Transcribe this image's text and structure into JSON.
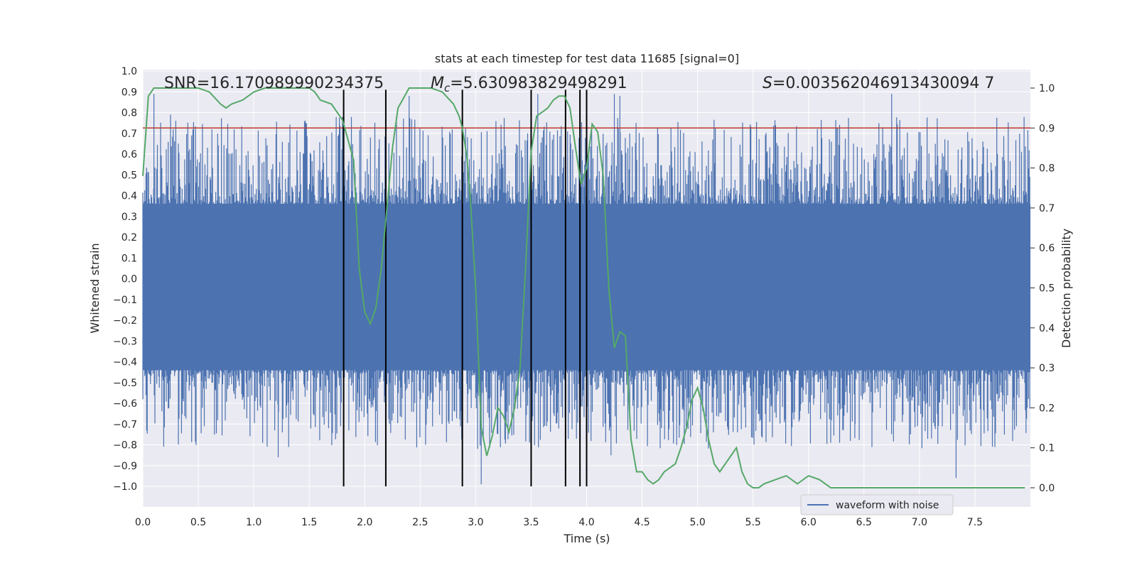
{
  "chart_data": {
    "type": "line",
    "title": "stats at each timestep for test data 11685 [signal=0]",
    "xlabel": "Time (s)",
    "ylabel_left": "Whitened strain",
    "ylabel_right": "Detection probability",
    "xlim": [
      0.0,
      8.0
    ],
    "ylim_left": [
      -1.0,
      1.0
    ],
    "ylim_right": [
      0.0,
      1.0
    ],
    "x_ticks": [
      "0.0",
      "0.5",
      "1.0",
      "1.5",
      "2.0",
      "2.5",
      "3.0",
      "3.5",
      "4.0",
      "4.5",
      "5.0",
      "5.5",
      "6.0",
      "6.5",
      "7.0",
      "7.5"
    ],
    "y_left_ticks": [
      "1.0",
      "0.9",
      "0.8",
      "0.7",
      "0.6",
      "0.5",
      "0.4",
      "0.3",
      "0.2",
      "0.1",
      "0.0",
      "−0.1",
      "−0.2",
      "−0.3",
      "−0.4",
      "−0.5",
      "−0.6",
      "−0.7",
      "−0.8",
      "−0.9",
      "−1.0"
    ],
    "y_right_ticks": [
      "1.0",
      "0.9",
      "0.8",
      "0.7",
      "0.6",
      "0.5",
      "0.4",
      "0.3",
      "0.2",
      "0.1",
      "0.0"
    ],
    "annotations": {
      "snr": "SNR=16.170989990234375",
      "mc_symbol": "M",
      "mc_subscript": "c",
      "mc_value": "=5.630983829498291",
      "s_symbol": "S",
      "s_value": "=0.003562046913430094 7"
    },
    "threshold": {
      "value": 0.9,
      "axis": "right",
      "color": "#c0392b"
    },
    "vlines": [
      1.81,
      2.19,
      2.88,
      3.5,
      3.81,
      3.94,
      4.0
    ],
    "waveform": {
      "name": "waveform with noise",
      "color": "#4c72b0",
      "envelope_pos": 0.36,
      "envelope_neg": -0.44,
      "notable_peaks": [
        {
          "x": 0.1,
          "y": 0.89
        },
        {
          "x": 0.25,
          "y": 0.79
        },
        {
          "x": 1.22,
          "y": -0.86
        },
        {
          "x": 2.4,
          "y": 0.88
        },
        {
          "x": 3.05,
          "y": -0.99
        },
        {
          "x": 3.56,
          "y": 0.89
        },
        {
          "x": 4.25,
          "y": 0.89
        },
        {
          "x": 4.3,
          "y": 0.88
        },
        {
          "x": 4.22,
          "y": -0.85
        },
        {
          "x": 6.75,
          "y": 0.89
        },
        {
          "x": 7.33,
          "y": -0.96
        },
        {
          "x": 6.42,
          "y": -0.7
        }
      ]
    },
    "probability": {
      "color": "#55a868",
      "x": [
        0.0,
        0.05,
        0.1,
        0.15,
        0.2,
        0.3,
        0.4,
        0.5,
        0.6,
        0.7,
        0.75,
        0.8,
        0.9,
        0.95,
        1.0,
        1.1,
        1.2,
        1.3,
        1.4,
        1.5,
        1.55,
        1.6,
        1.7,
        1.8,
        1.9,
        1.95,
        2.0,
        2.05,
        2.1,
        2.15,
        2.2,
        2.25,
        2.3,
        2.4,
        2.5,
        2.6,
        2.7,
        2.8,
        2.85,
        2.88,
        2.92,
        2.95,
        3.0,
        3.05,
        3.1,
        3.15,
        3.2,
        3.25,
        3.3,
        3.35,
        3.4,
        3.45,
        3.5,
        3.55,
        3.6,
        3.65,
        3.7,
        3.75,
        3.8,
        3.85,
        3.9,
        3.95,
        4.0,
        4.05,
        4.1,
        4.15,
        4.2,
        4.25,
        4.3,
        4.35,
        4.4,
        4.45,
        4.5,
        4.55,
        4.6,
        4.65,
        4.7,
        4.75,
        4.8,
        4.85,
        4.9,
        4.95,
        5.0,
        5.05,
        5.1,
        5.15,
        5.2,
        5.25,
        5.3,
        5.35,
        5.4,
        5.45,
        5.5,
        5.55,
        5.6,
        5.7,
        5.8,
        5.9,
        6.0,
        6.1,
        6.2,
        6.3,
        6.5,
        7.0,
        7.5,
        7.95
      ],
      "y": [
        0.78,
        0.98,
        1.0,
        1.0,
        1.0,
        1.0,
        1.0,
        1.0,
        0.99,
        0.96,
        0.95,
        0.96,
        0.97,
        0.98,
        0.99,
        1.0,
        1.0,
        1.0,
        1.0,
        1.0,
        0.99,
        0.97,
        0.96,
        0.92,
        0.82,
        0.55,
        0.44,
        0.41,
        0.45,
        0.55,
        0.7,
        0.85,
        0.95,
        1.0,
        1.0,
        1.0,
        0.99,
        0.96,
        0.93,
        0.9,
        0.83,
        0.73,
        0.5,
        0.15,
        0.08,
        0.13,
        0.2,
        0.18,
        0.14,
        0.2,
        0.3,
        0.55,
        0.84,
        0.93,
        0.94,
        0.95,
        0.97,
        0.98,
        0.98,
        0.95,
        0.85,
        0.76,
        0.8,
        0.91,
        0.89,
        0.78,
        0.5,
        0.35,
        0.39,
        0.38,
        0.12,
        0.04,
        0.04,
        0.02,
        0.01,
        0.02,
        0.04,
        0.05,
        0.06,
        0.1,
        0.15,
        0.22,
        0.25,
        0.2,
        0.12,
        0.06,
        0.04,
        0.06,
        0.08,
        0.1,
        0.04,
        0.01,
        0.0,
        0.0,
        0.01,
        0.02,
        0.03,
        0.01,
        0.03,
        0.02,
        0.0,
        0.0,
        0.0,
        0.0,
        0.0,
        0.0
      ]
    },
    "legend": {
      "placement": "bottom-center",
      "entries": [
        "waveform with noise"
      ]
    },
    "grid": true,
    "background": "#eaeaf2"
  }
}
